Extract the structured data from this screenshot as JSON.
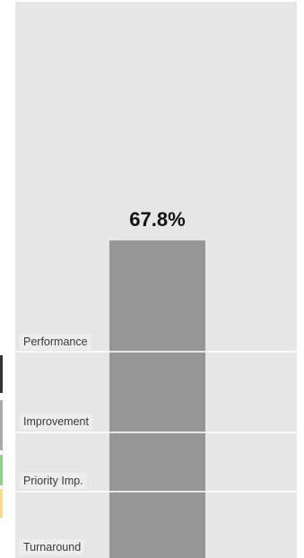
{
  "chart_data": {
    "type": "bar",
    "categories": [
      ""
    ],
    "values": [
      67.8
    ],
    "value_label": "67.8%",
    "ylim": [
      0,
      100
    ],
    "bands": [
      {
        "label": "Performance"
      },
      {
        "label": "Improvement"
      },
      {
        "label": "Priority Imp."
      },
      {
        "label": "Turnaround"
      }
    ],
    "colors": {
      "background": "#e6e6e6",
      "bar": "#969696",
      "band_divider": "#ffffff",
      "legend": [
        "#333333",
        "#aaaaaa",
        "#8ed08e",
        "#f5dc8c"
      ]
    }
  }
}
